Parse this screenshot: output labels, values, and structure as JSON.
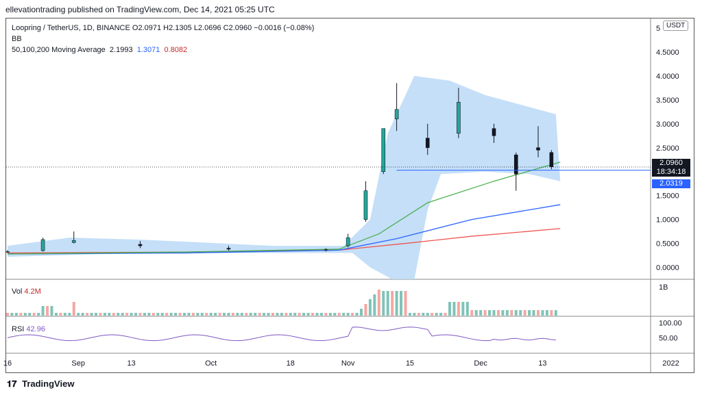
{
  "header": {
    "publisher": "ellevationtrading published on TradingView.com, Dec 14, 2021 05:25 UTC"
  },
  "legend": {
    "symbol": "Loopring / TetherUS, 1D, BINANCE",
    "open": "O2.0971",
    "high": "H2.1305",
    "low": "L2.0696",
    "close": "C2.0960",
    "change": "−0.0016 (−0.08%)",
    "bb": "BB",
    "ma_label": "50,100,200 Moving Average",
    "ma50": "2.1993",
    "ma100": "1.3071",
    "ma200": "0.8082",
    "vol_label": "Vol",
    "vol_value": "4.2M",
    "rsi_label": "RSI",
    "rsi_value": "42.96"
  },
  "price_axis": {
    "currency": "USDT",
    "current_price": "2.0960",
    "countdown": "18:34:18",
    "ma_price": "2.0319"
  },
  "footer": {
    "brand": "TradingView"
  },
  "colors": {
    "up": "#26a69a",
    "down": "#131722",
    "bb_fill": "#bbd9f7",
    "ma50": "#4caf50",
    "ma100": "#2962ff",
    "ma200": "#ef5350",
    "rsi": "#7e57c2",
    "vol_up": "#7fc3b8",
    "vol_down": "#f4a7a3"
  },
  "chart_data": [
    {
      "type": "candlestick",
      "title": "Loopring / TetherUS, 1D, BINANCE",
      "ylim": [
        -0.25,
        5.2
      ],
      "y_ticks": [
        "5.0000",
        "4.5000",
        "4.0000",
        "3.5000",
        "3.0000",
        "2.5000",
        "2.0000",
        "1.5000",
        "1.0000",
        "0.5000",
        "0.0000"
      ],
      "x_ticks": [
        "16",
        "Sep",
        "13",
        "Oct",
        "18",
        "Nov",
        "15",
        "Dec",
        "13",
        "2022"
      ],
      "x_tick_days": [
        0,
        16,
        28,
        46,
        64,
        77,
        91,
        107,
        121,
        150
      ],
      "candles_daily_close_approx": [
        {
          "day": 0,
          "o": 0.32,
          "h": 0.36,
          "l": 0.3,
          "c": 0.33
        },
        {
          "day": 8,
          "o": 0.35,
          "h": 0.62,
          "l": 0.33,
          "c": 0.58
        },
        {
          "day": 15,
          "o": 0.52,
          "h": 0.75,
          "l": 0.5,
          "c": 0.56
        },
        {
          "day": 30,
          "o": 0.48,
          "h": 0.55,
          "l": 0.4,
          "c": 0.45
        },
        {
          "day": 50,
          "o": 0.4,
          "h": 0.45,
          "l": 0.35,
          "c": 0.38
        },
        {
          "day": 72,
          "o": 0.36,
          "h": 0.4,
          "l": 0.33,
          "c": 0.37
        },
        {
          "day": 77,
          "o": 0.45,
          "h": 0.7,
          "l": 0.42,
          "c": 0.62
        },
        {
          "day": 81,
          "o": 1.0,
          "h": 1.8,
          "l": 0.95,
          "c": 1.6
        },
        {
          "day": 85,
          "o": 2.0,
          "h": 2.9,
          "l": 1.95,
          "c": 2.9
        },
        {
          "day": 88,
          "o": 3.1,
          "h": 3.85,
          "l": 2.85,
          "c": 3.3
        },
        {
          "day": 95,
          "o": 2.7,
          "h": 3.0,
          "l": 2.35,
          "c": 2.5
        },
        {
          "day": 102,
          "o": 2.8,
          "h": 3.75,
          "l": 2.7,
          "c": 3.45
        },
        {
          "day": 110,
          "o": 2.9,
          "h": 3.0,
          "l": 2.6,
          "c": 2.75
        },
        {
          "day": 115,
          "o": 2.35,
          "h": 2.4,
          "l": 1.6,
          "c": 1.95
        },
        {
          "day": 120,
          "o": 2.5,
          "h": 2.95,
          "l": 2.3,
          "c": 2.45
        },
        {
          "day": 123,
          "o": 2.4,
          "h": 2.45,
          "l": 2.05,
          "c": 2.1
        }
      ],
      "moving_averages": {
        "ma50_last": 2.1993,
        "ma100_last": 1.3071,
        "ma200_last": 0.8082
      }
    },
    {
      "type": "bar",
      "title": "Vol",
      "y_ticks": [
        "1B"
      ],
      "note_value": "4.2M"
    },
    {
      "type": "line",
      "title": "RSI",
      "y_ticks": [
        "100.00",
        "50.00"
      ],
      "ylim": [
        0,
        120
      ],
      "last_value": 42.96
    }
  ]
}
